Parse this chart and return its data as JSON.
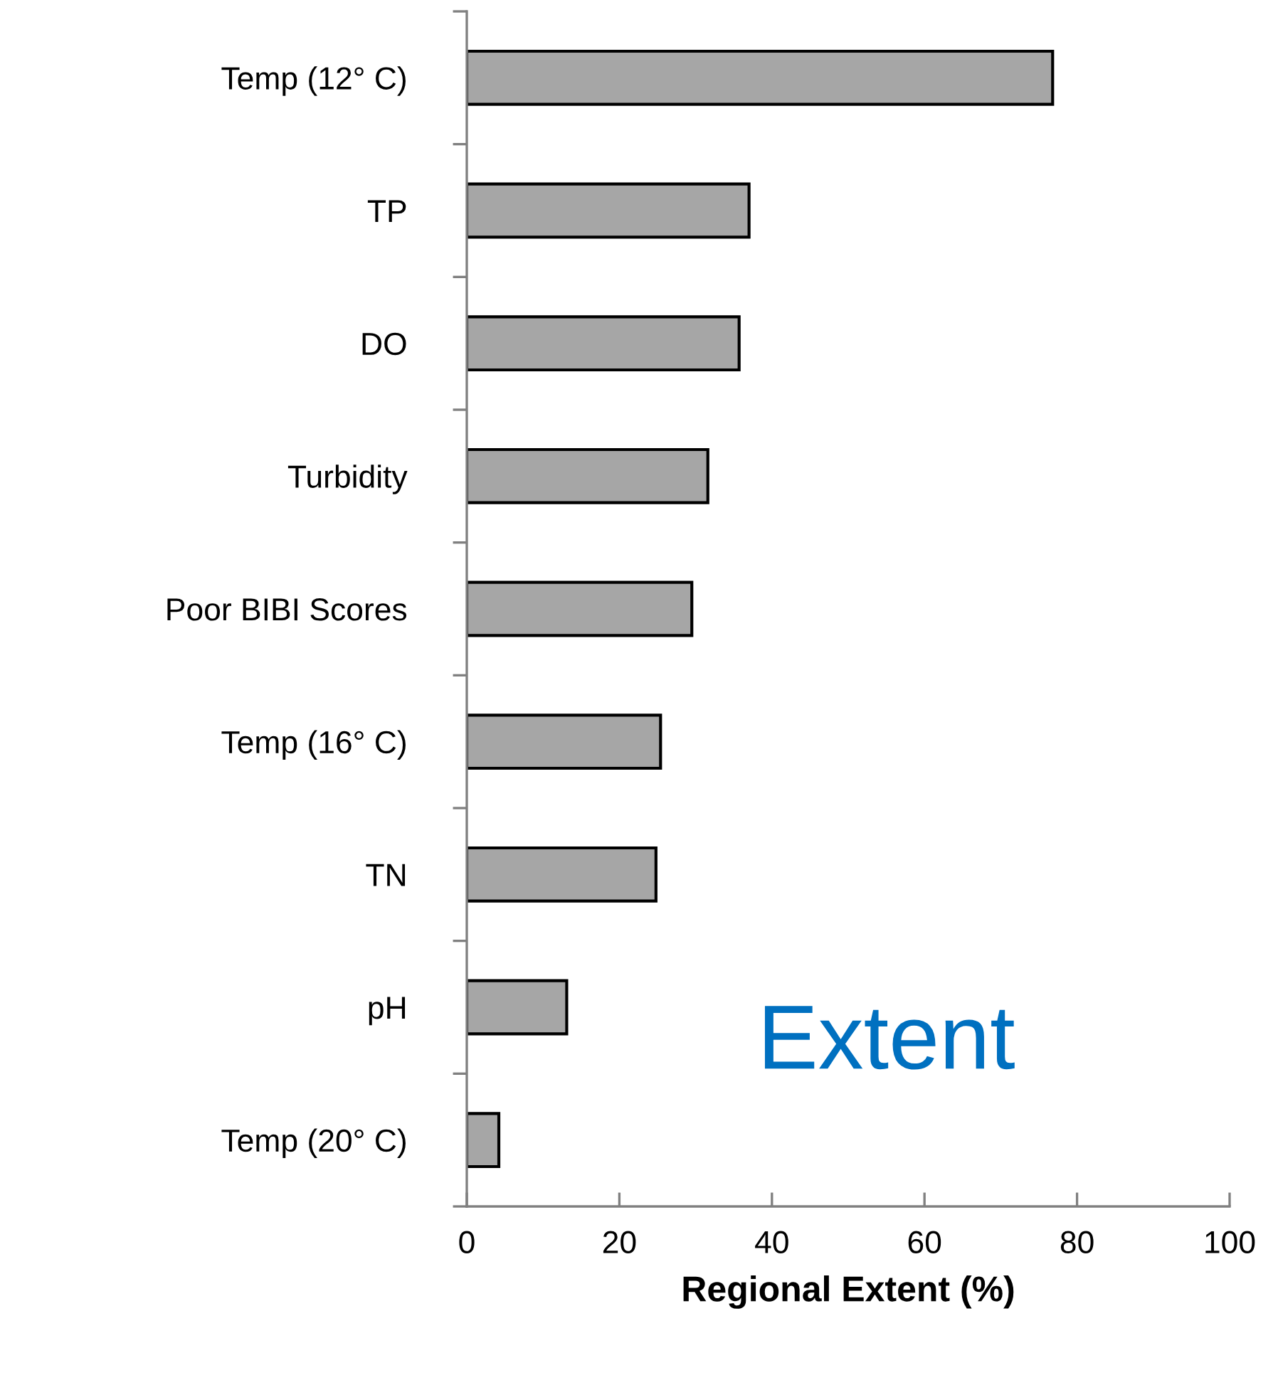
{
  "chart_data": {
    "type": "bar",
    "orientation": "horizontal",
    "xlabel": "Regional Extent (%)",
    "categories": [
      "Temp (12° C)",
      "TP",
      "DO",
      "Turbidity",
      "Poor BIBI Scores",
      "Temp (16° C)",
      "TN",
      "pH",
      "Temp (20° C)"
    ],
    "values": [
      76.8,
      37.0,
      35.7,
      31.6,
      29.5,
      25.4,
      24.8,
      13.1,
      4.2
    ],
    "color": "#a6a6a6",
    "xlim": [
      0,
      100
    ],
    "xticks": [
      0,
      20,
      40,
      60,
      80,
      100
    ],
    "grid": false,
    "legend": false,
    "annotations": [
      "Extent"
    ]
  }
}
